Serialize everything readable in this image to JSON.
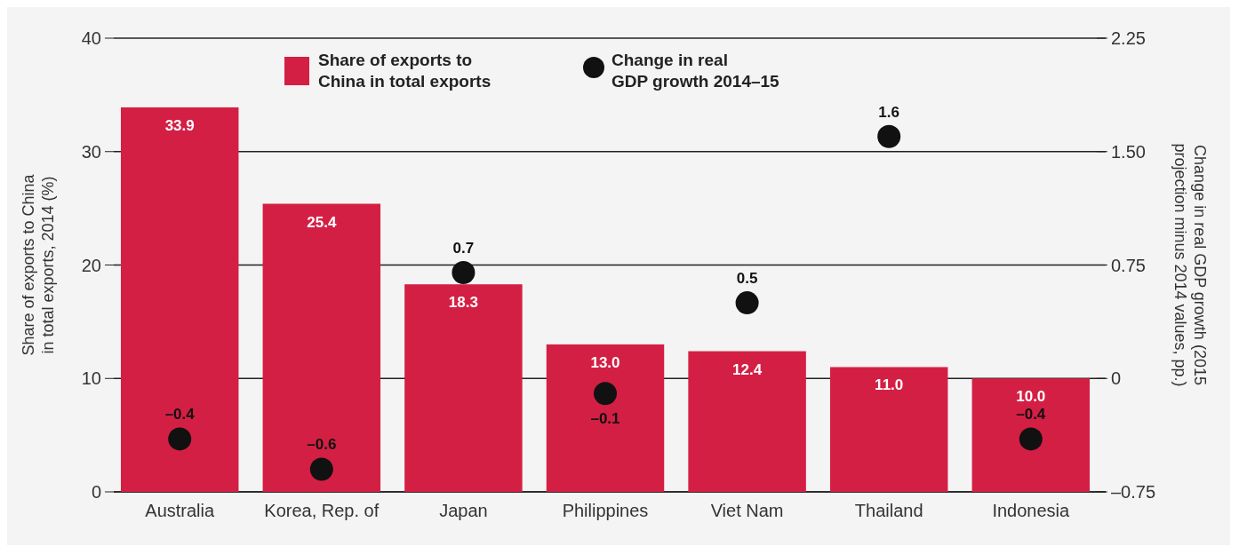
{
  "chart_data": {
    "type": "bar",
    "ylabel": "Share of exports to China in total exports, 2014 (%)",
    "y2label": "Change in real GDP growth (2015 projection minus 2014 values, pp.)",
    "categories": [
      "Australia",
      "Korea, Rep. of",
      "Japan",
      "Philippines",
      "Viet Nam",
      "Thailand",
      "Indonesia"
    ],
    "series": [
      {
        "name": "Share of exports to China in total exports",
        "color": "#d41f44",
        "values": [
          33.9,
          25.4,
          18.3,
          13.0,
          12.4,
          11.0,
          10.0
        ],
        "value_labels": [
          "33.9",
          "25.4",
          "18.3",
          "13.0",
          "12.4",
          "11.0",
          "10.0"
        ]
      },
      {
        "name": "Change in real GDP growth 2014–15",
        "type": "scatter",
        "axis": "y2",
        "color": "#111111",
        "values": [
          -0.4,
          -0.6,
          0.7,
          -0.1,
          0.5,
          1.6,
          -0.4
        ],
        "value_labels": [
          "–0.4",
          "–0.6",
          "0.7",
          "–0.1",
          "0.5",
          "1.6",
          "–0.4"
        ]
      }
    ],
    "ylim": [
      0,
      40
    ],
    "yticks": [
      0,
      10,
      20,
      30,
      40
    ],
    "y2lim": [
      -0.75,
      2.25
    ],
    "y2ticks": [
      {
        "value": -0.75,
        "label": "–0.75"
      },
      0,
      0.75,
      {
        "value": 1.5,
        "label": "1.50"
      },
      2.25
    ],
    "grid": "y",
    "legend": "top",
    "marker": "circle"
  }
}
